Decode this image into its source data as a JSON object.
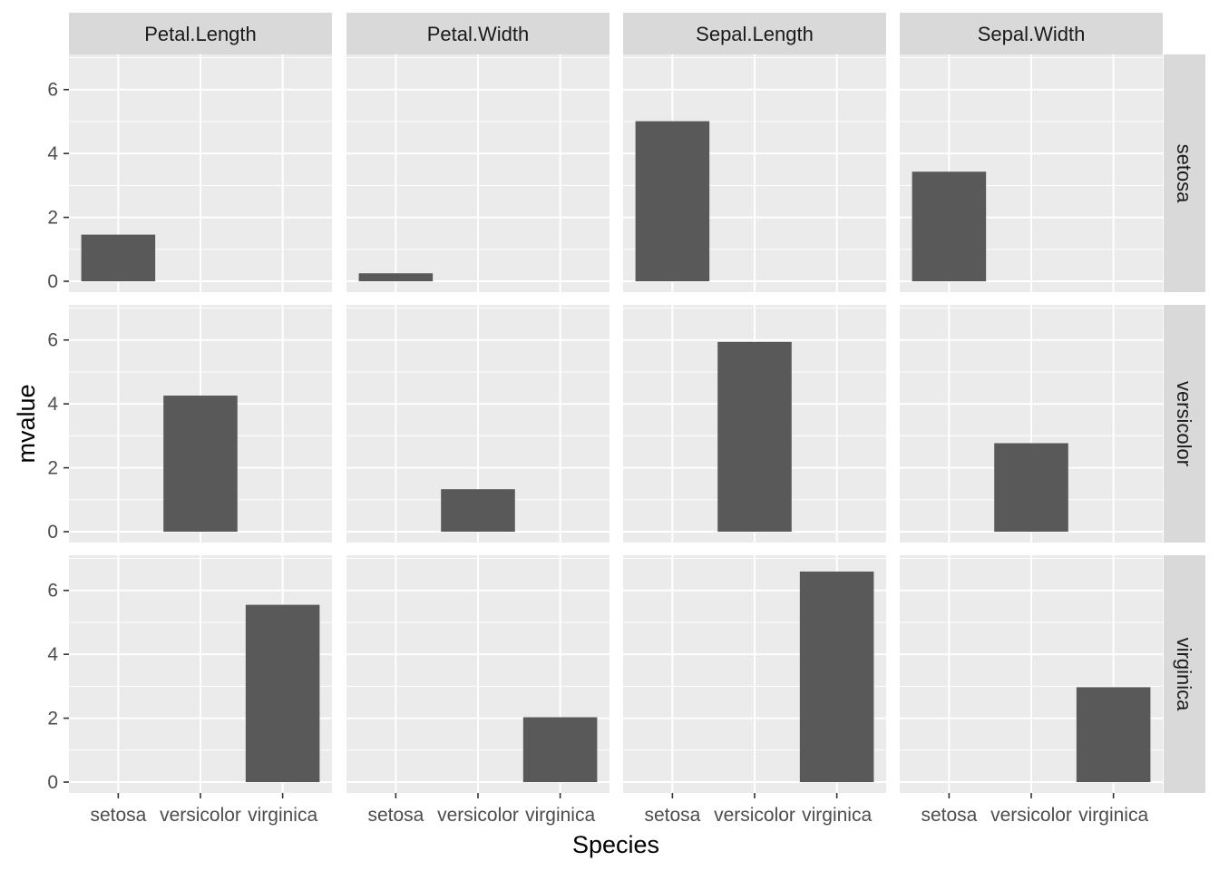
{
  "chart_data": {
    "type": "bar",
    "faceted": true,
    "xlabel": "Species",
    "ylabel": "mvalue",
    "categories": [
      "setosa",
      "versicolor",
      "virginica"
    ],
    "facet_columns": [
      "Petal.Length",
      "Petal.Width",
      "Sepal.Length",
      "Sepal.Width"
    ],
    "facet_rows": [
      "setosa",
      "versicolor",
      "virginica"
    ],
    "ylim": [
      -0.34,
      7.1
    ],
    "yticks": [
      0,
      2,
      4,
      6
    ],
    "grid": true,
    "colors": {
      "panel_bg": "#ebebeb",
      "strip_bg": "#d9d9d9",
      "grid": "#ffffff",
      "bar": "#595959",
      "tick": "#333333"
    },
    "panels": [
      {
        "row": "setosa",
        "col": "Petal.Length",
        "category": "setosa",
        "value": 1.46
      },
      {
        "row": "setosa",
        "col": "Petal.Width",
        "category": "setosa",
        "value": 0.25
      },
      {
        "row": "setosa",
        "col": "Sepal.Length",
        "category": "setosa",
        "value": 5.01
      },
      {
        "row": "setosa",
        "col": "Sepal.Width",
        "category": "setosa",
        "value": 3.43
      },
      {
        "row": "versicolor",
        "col": "Petal.Length",
        "category": "versicolor",
        "value": 4.26
      },
      {
        "row": "versicolor",
        "col": "Petal.Width",
        "category": "versicolor",
        "value": 1.33
      },
      {
        "row": "versicolor",
        "col": "Sepal.Length",
        "category": "versicolor",
        "value": 5.94
      },
      {
        "row": "versicolor",
        "col": "Sepal.Width",
        "category": "versicolor",
        "value": 2.77
      },
      {
        "row": "virginica",
        "col": "Petal.Length",
        "category": "virginica",
        "value": 5.55
      },
      {
        "row": "virginica",
        "col": "Petal.Width",
        "category": "virginica",
        "value": 2.03
      },
      {
        "row": "virginica",
        "col": "Sepal.Length",
        "category": "virginica",
        "value": 6.59
      },
      {
        "row": "virginica",
        "col": "Sepal.Width",
        "category": "virginica",
        "value": 2.97
      }
    ]
  }
}
